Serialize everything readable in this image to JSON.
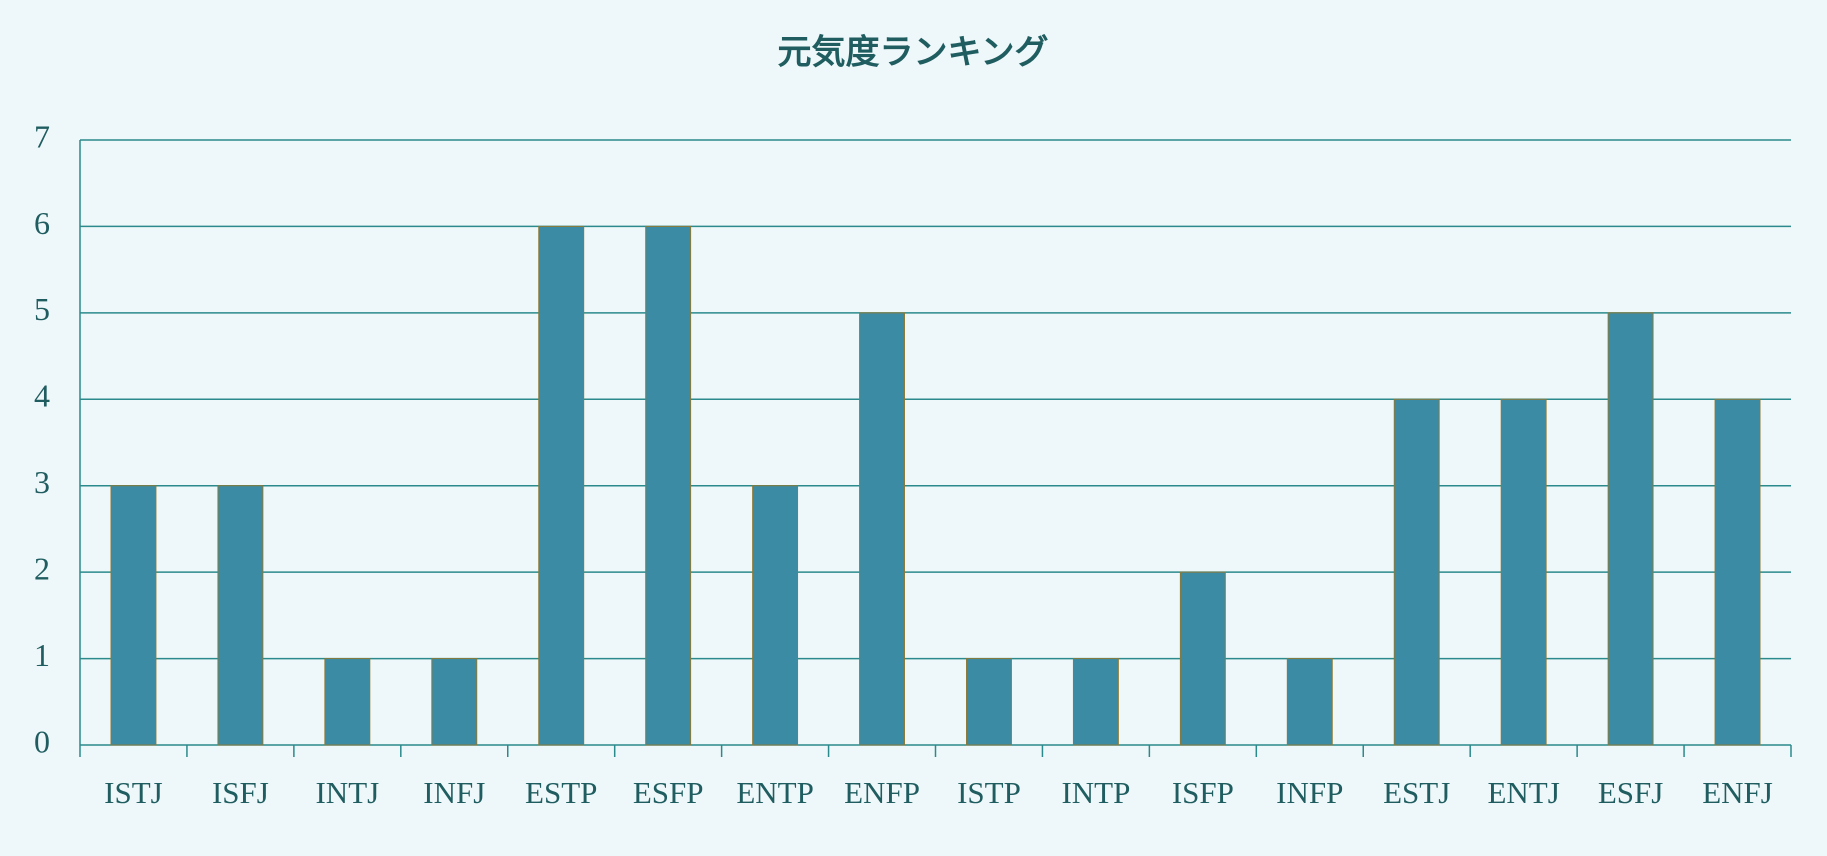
{
  "chart_data": {
    "type": "bar",
    "title": "元気度ランキング",
    "categories": [
      "ISTJ",
      "ISFJ",
      "INTJ",
      "INFJ",
      "ESTP",
      "ESFP",
      "ENTP",
      "ENFP",
      "ISTP",
      "INTP",
      "ISFP",
      "INFP",
      "ESTJ",
      "ENTJ",
      "ESFJ",
      "ENFJ"
    ],
    "values": [
      3,
      3,
      1,
      1,
      6,
      6,
      3,
      5,
      1,
      1,
      2,
      1,
      4,
      4,
      5,
      4
    ],
    "color": "#3b8ba5",
    "ylim": [
      0,
      7
    ],
    "yticks": [
      0,
      1,
      2,
      3,
      4,
      5,
      6,
      7
    ],
    "grid": true
  }
}
